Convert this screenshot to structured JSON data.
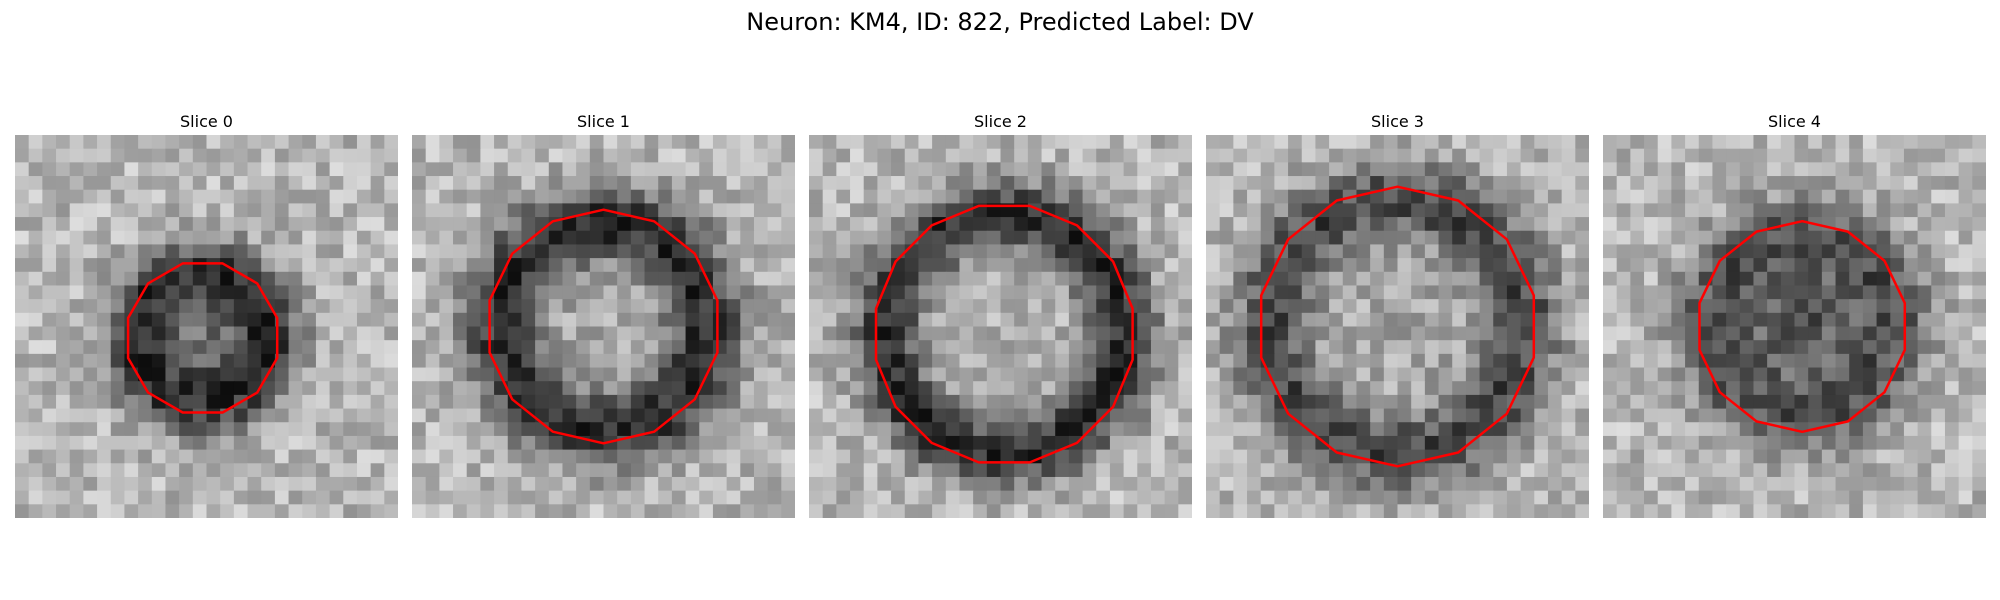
{
  "figure": {
    "title": "Neuron: KM4, ID: 822, Predicted Label: DV",
    "colormap": "gray",
    "contour_color": "#ff0000"
  },
  "panels": [
    {
      "title": "Slice 0"
    },
    {
      "title": "Slice 1"
    },
    {
      "title": "Slice 2"
    },
    {
      "title": "Slice 3"
    },
    {
      "title": "Slice 4"
    }
  ]
}
